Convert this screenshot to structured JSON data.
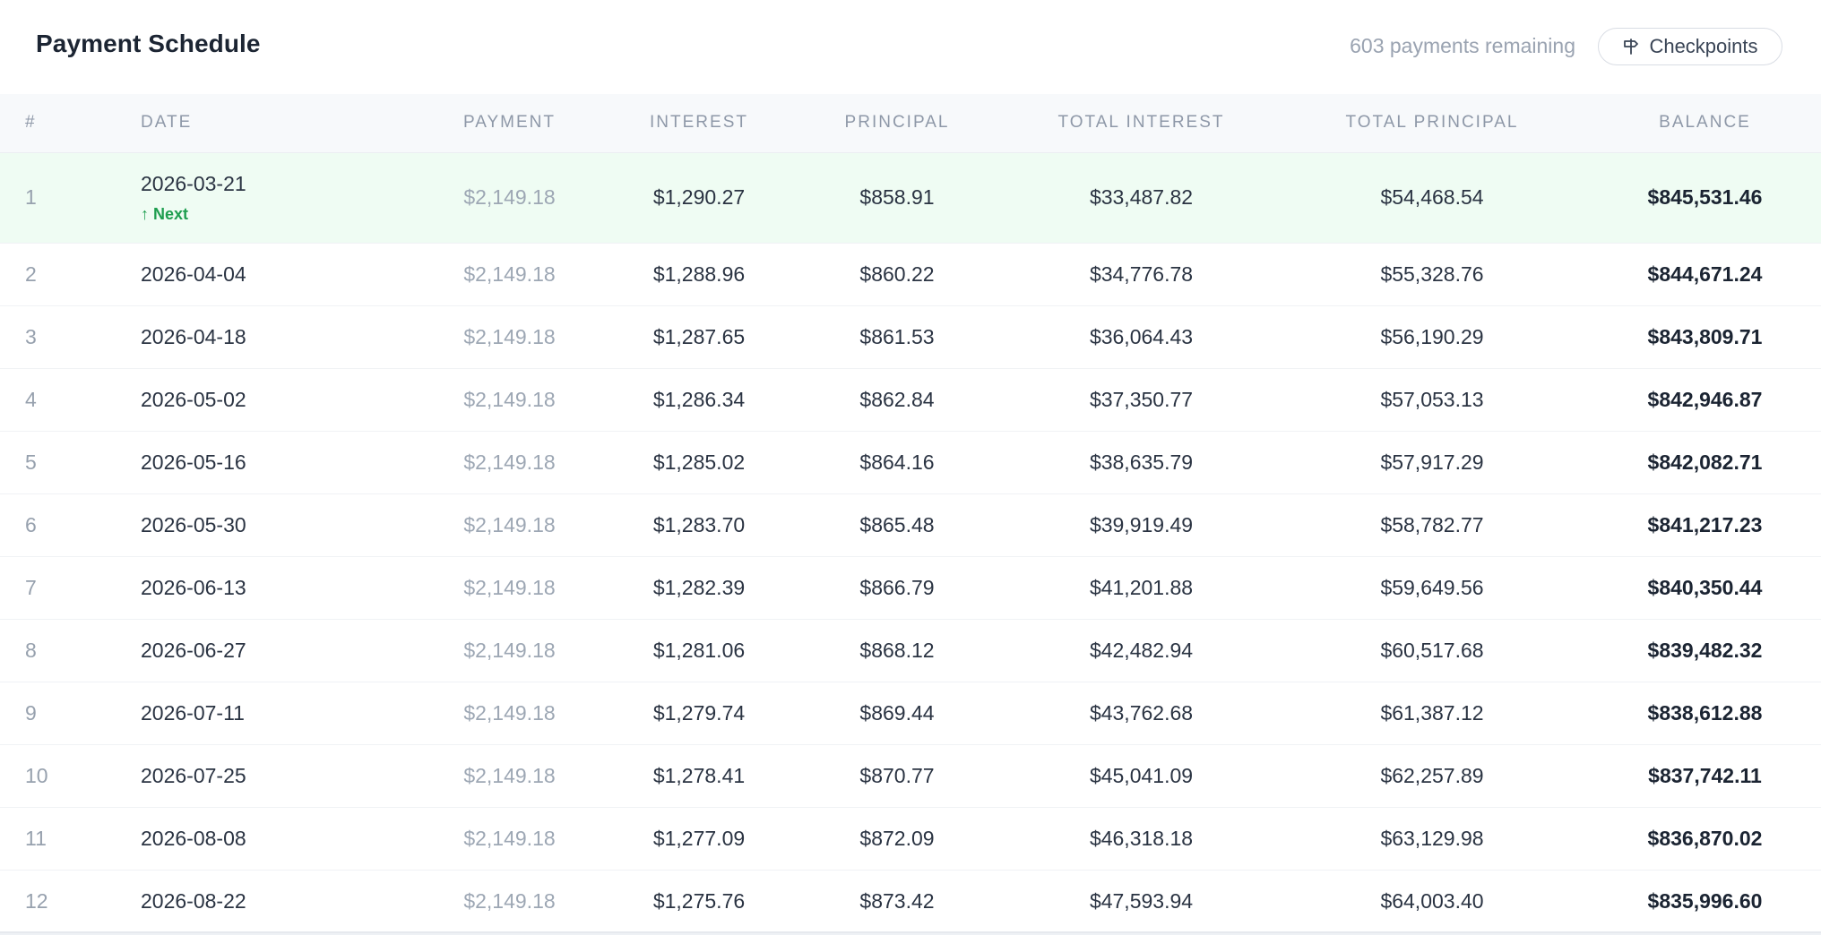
{
  "header": {
    "title": "Payment Schedule",
    "remaining": "603 payments remaining",
    "checkpoints_label": "Checkpoints"
  },
  "columns": {
    "num": "#",
    "date": "DATE",
    "payment": "PAYMENT",
    "interest": "INTEREST",
    "principal": "PRINCIPAL",
    "total_interest": "TOTAL INTEREST",
    "total_principal": "TOTAL PRINCIPAL",
    "balance": "BALANCE"
  },
  "next_label": "↑ Next",
  "rows": [
    {
      "num": "1",
      "date": "2026-03-21",
      "payment": "$2,149.18",
      "interest": "$1,290.27",
      "principal": "$858.91",
      "total_interest": "$33,487.82",
      "total_principal": "$54,468.54",
      "balance": "$845,531.46"
    },
    {
      "num": "2",
      "date": "2026-04-04",
      "payment": "$2,149.18",
      "interest": "$1,288.96",
      "principal": "$860.22",
      "total_interest": "$34,776.78",
      "total_principal": "$55,328.76",
      "balance": "$844,671.24"
    },
    {
      "num": "3",
      "date": "2026-04-18",
      "payment": "$2,149.18",
      "interest": "$1,287.65",
      "principal": "$861.53",
      "total_interest": "$36,064.43",
      "total_principal": "$56,190.29",
      "balance": "$843,809.71"
    },
    {
      "num": "4",
      "date": "2026-05-02",
      "payment": "$2,149.18",
      "interest": "$1,286.34",
      "principal": "$862.84",
      "total_interest": "$37,350.77",
      "total_principal": "$57,053.13",
      "balance": "$842,946.87"
    },
    {
      "num": "5",
      "date": "2026-05-16",
      "payment": "$2,149.18",
      "interest": "$1,285.02",
      "principal": "$864.16",
      "total_interest": "$38,635.79",
      "total_principal": "$57,917.29",
      "balance": "$842,082.71"
    },
    {
      "num": "6",
      "date": "2026-05-30",
      "payment": "$2,149.18",
      "interest": "$1,283.70",
      "principal": "$865.48",
      "total_interest": "$39,919.49",
      "total_principal": "$58,782.77",
      "balance": "$841,217.23"
    },
    {
      "num": "7",
      "date": "2026-06-13",
      "payment": "$2,149.18",
      "interest": "$1,282.39",
      "principal": "$866.79",
      "total_interest": "$41,201.88",
      "total_principal": "$59,649.56",
      "balance": "$840,350.44"
    },
    {
      "num": "8",
      "date": "2026-06-27",
      "payment": "$2,149.18",
      "interest": "$1,281.06",
      "principal": "$868.12",
      "total_interest": "$42,482.94",
      "total_principal": "$60,517.68",
      "balance": "$839,482.32"
    },
    {
      "num": "9",
      "date": "2026-07-11",
      "payment": "$2,149.18",
      "interest": "$1,279.74",
      "principal": "$869.44",
      "total_interest": "$43,762.68",
      "total_principal": "$61,387.12",
      "balance": "$838,612.88"
    },
    {
      "num": "10",
      "date": "2026-07-25",
      "payment": "$2,149.18",
      "interest": "$1,278.41",
      "principal": "$870.77",
      "total_interest": "$45,041.09",
      "total_principal": "$62,257.89",
      "balance": "$837,742.11"
    },
    {
      "num": "11",
      "date": "2026-08-08",
      "payment": "$2,149.18",
      "interest": "$1,277.09",
      "principal": "$872.09",
      "total_interest": "$46,318.18",
      "total_principal": "$63,129.98",
      "balance": "$836,870.02"
    },
    {
      "num": "12",
      "date": "2026-08-22",
      "payment": "$2,149.18",
      "interest": "$1,275.76",
      "principal": "$873.42",
      "total_interest": "$47,593.94",
      "total_principal": "$64,003.40",
      "balance": "$835,996.60"
    }
  ],
  "colors": {
    "next_row_bg": "#effcf3",
    "next_badge": "#1e9e4f",
    "muted": "#9aa3b1",
    "text": "#2a3342"
  },
  "icons": {
    "checkpoints": "signpost-icon",
    "next": "arrow-up-icon"
  }
}
